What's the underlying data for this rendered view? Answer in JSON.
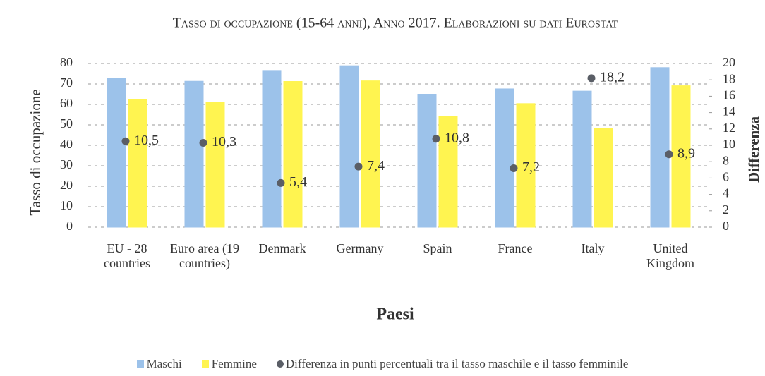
{
  "chart_data": {
    "type": "bar",
    "title": "Tasso di occupazione (15-64 anni), Anno 2017. Elaborazioni su dati Eurostat",
    "x_label": "Paesi",
    "y_label": "Tasso di occupazione",
    "y2_label": "Differenza",
    "categories": [
      "EU - 28 countries",
      "Euro area (19 countries)",
      "Denmark",
      "Germany",
      "Spain",
      "France",
      "Italy",
      "United Kingdom"
    ],
    "series": [
      {
        "name": "Maschi",
        "color": "#9cc2ea",
        "values": [
          72.9,
          71.3,
          76.6,
          78.9,
          65.0,
          67.6,
          66.5,
          78.0
        ]
      },
      {
        "name": "Femmine",
        "color": "#fff450",
        "values": [
          62.4,
          61.0,
          71.2,
          71.5,
          54.2,
          60.4,
          48.3,
          69.1
        ]
      },
      {
        "name": "Differenza in punti percentuali tra il tasso maschile e il tasso femminile",
        "color": "#5a5e66",
        "axis": "y2",
        "values": [
          10.5,
          10.3,
          5.4,
          7.4,
          10.8,
          7.2,
          18.2,
          8.9
        ],
        "value_labels": [
          "10,5",
          "10,3",
          "5,4",
          "7,4",
          "10,8",
          "7,2",
          "18,2",
          "8,9"
        ]
      }
    ],
    "ylim": [
      0,
      80
    ],
    "yticks": [
      0,
      10,
      20,
      30,
      40,
      50,
      60,
      70,
      80
    ],
    "y2lim": [
      0,
      20
    ],
    "y2ticks": [
      0,
      2,
      4,
      6,
      8,
      10,
      12,
      14,
      16,
      18,
      20
    ],
    "grid": true,
    "legend": "bottom"
  }
}
